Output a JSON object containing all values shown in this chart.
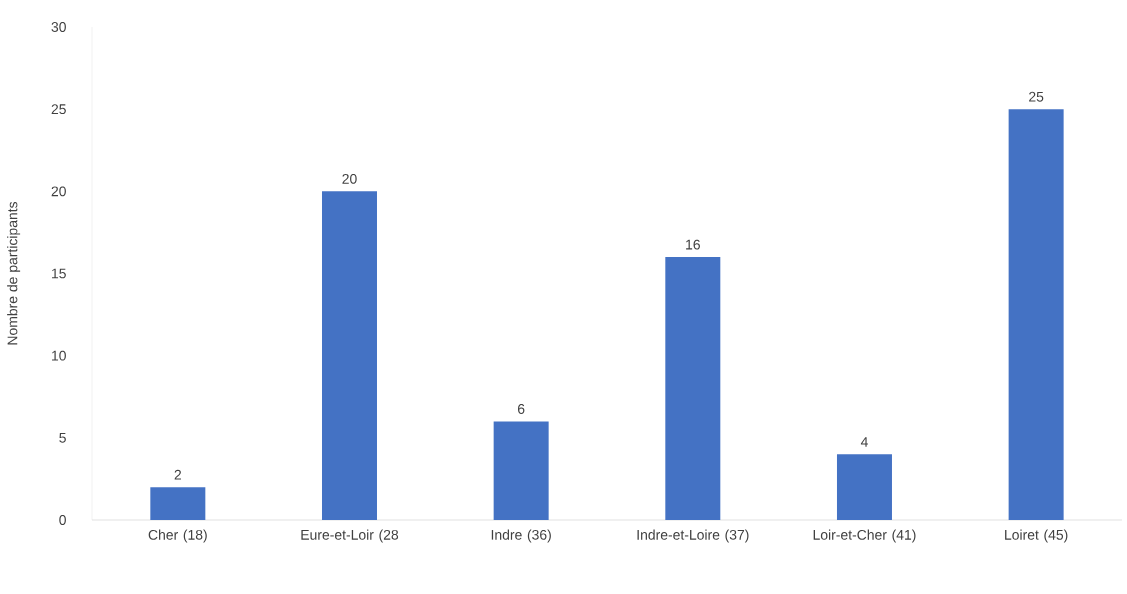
{
  "chart_data": {
    "type": "bar",
    "ylabel": "Nombre de participants",
    "categories": [
      "Cher (18)",
      "Eure-et-Loir (28",
      "Indre (36)",
      "Indre-et-Loire (37)",
      "Loir-et-Cher (41)",
      "Loiret (45)"
    ],
    "values": [
      2,
      20,
      6,
      16,
      4,
      25
    ],
    "color": "#4472c4",
    "ylim": [
      0,
      30
    ],
    "yticks": [
      0,
      5,
      10,
      15,
      20,
      25,
      30
    ],
    "data_labels": true
  }
}
